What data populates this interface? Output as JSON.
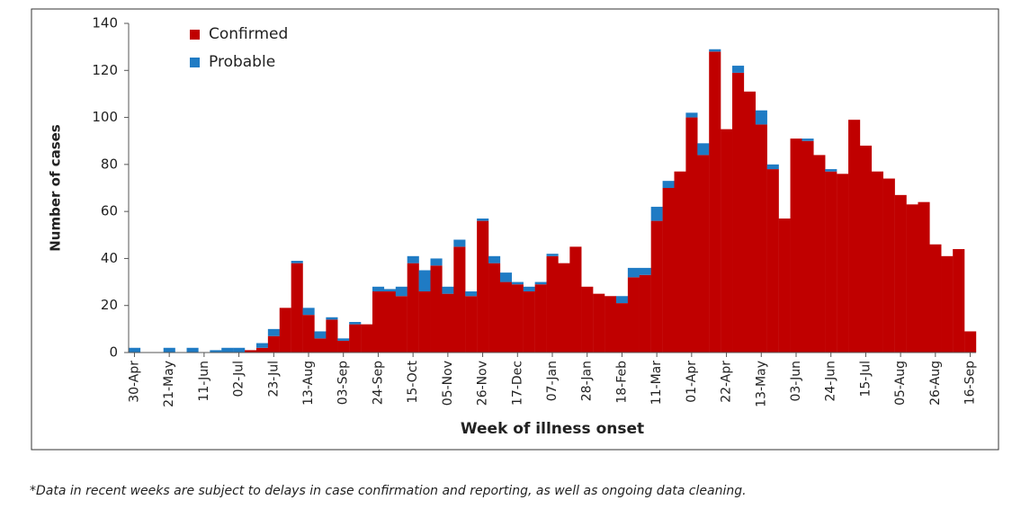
{
  "chart_data": {
    "type": "stacked_bar",
    "y_label": "Number of cases",
    "x_label": "Week of illness onset",
    "note": "*Data in recent weeks are subject to delays in case confirmation and reporting, as well as ongoing data cleaning.",
    "categories": [
      "30-Apr",
      null,
      null,
      "21-May",
      null,
      null,
      "11-Jun",
      null,
      null,
      "02-Jul",
      null,
      null,
      "23-Jul",
      null,
      null,
      "13-Aug",
      null,
      null,
      "03-Sep",
      null,
      null,
      "24-Sep",
      null,
      null,
      "15-Oct",
      null,
      null,
      "05-Nov",
      null,
      null,
      "26-Nov",
      null,
      null,
      "17-Dec",
      null,
      null,
      "07-Jan",
      null,
      null,
      "28-Jan",
      null,
      null,
      "18-Feb",
      null,
      null,
      "11-Mar",
      null,
      null,
      "01-Apr",
      null,
      null,
      "22-Apr",
      null,
      null,
      "13-May",
      null,
      null,
      "03-Jun",
      null,
      null,
      "24-Jun",
      null,
      null,
      "15-Jul",
      null,
      null,
      "05-Aug",
      null,
      null,
      "26-Aug",
      null,
      null,
      "16-Sep"
    ],
    "series": [
      {
        "name": "Confirmed",
        "color": "#c00000",
        "values": [
          0,
          0,
          0,
          0,
          0,
          0,
          0,
          0,
          0,
          0,
          1,
          2,
          7,
          19,
          38,
          16,
          6,
          14,
          5,
          12,
          12,
          26,
          26,
          24,
          38,
          26,
          37,
          25,
          45,
          24,
          56,
          38,
          30,
          29,
          26,
          29,
          41,
          38,
          45,
          28,
          25,
          24,
          21,
          32,
          33,
          56,
          70,
          77,
          100,
          84,
          128,
          95,
          119,
          111,
          97,
          78,
          57,
          91,
          90,
          84,
          77,
          76,
          99,
          88,
          77,
          74,
          67,
          63,
          64,
          46,
          41,
          44,
          9
        ]
      },
      {
        "name": "Probable",
        "color": "#1f7bc4",
        "values": [
          2,
          0,
          0,
          2,
          0,
          2,
          0,
          1,
          2,
          2,
          0,
          2,
          3,
          0,
          1,
          3,
          3,
          1,
          1,
          1,
          0,
          2,
          1,
          4,
          3,
          9,
          3,
          3,
          3,
          2,
          1,
          3,
          4,
          1,
          2,
          1,
          1,
          0,
          0,
          0,
          0,
          0,
          3,
          4,
          3,
          6,
          3,
          0,
          2,
          5,
          1,
          0,
          3,
          0,
          6,
          2,
          0,
          0,
          1,
          0,
          1,
          0,
          0,
          0,
          0,
          0,
          0,
          0,
          0,
          0,
          0,
          0,
          0
        ]
      }
    ],
    "ylim": [
      0,
      140
    ],
    "yticks": [
      0,
      20,
      40,
      60,
      80,
      100,
      120,
      140
    ],
    "legend": "top-left"
  }
}
